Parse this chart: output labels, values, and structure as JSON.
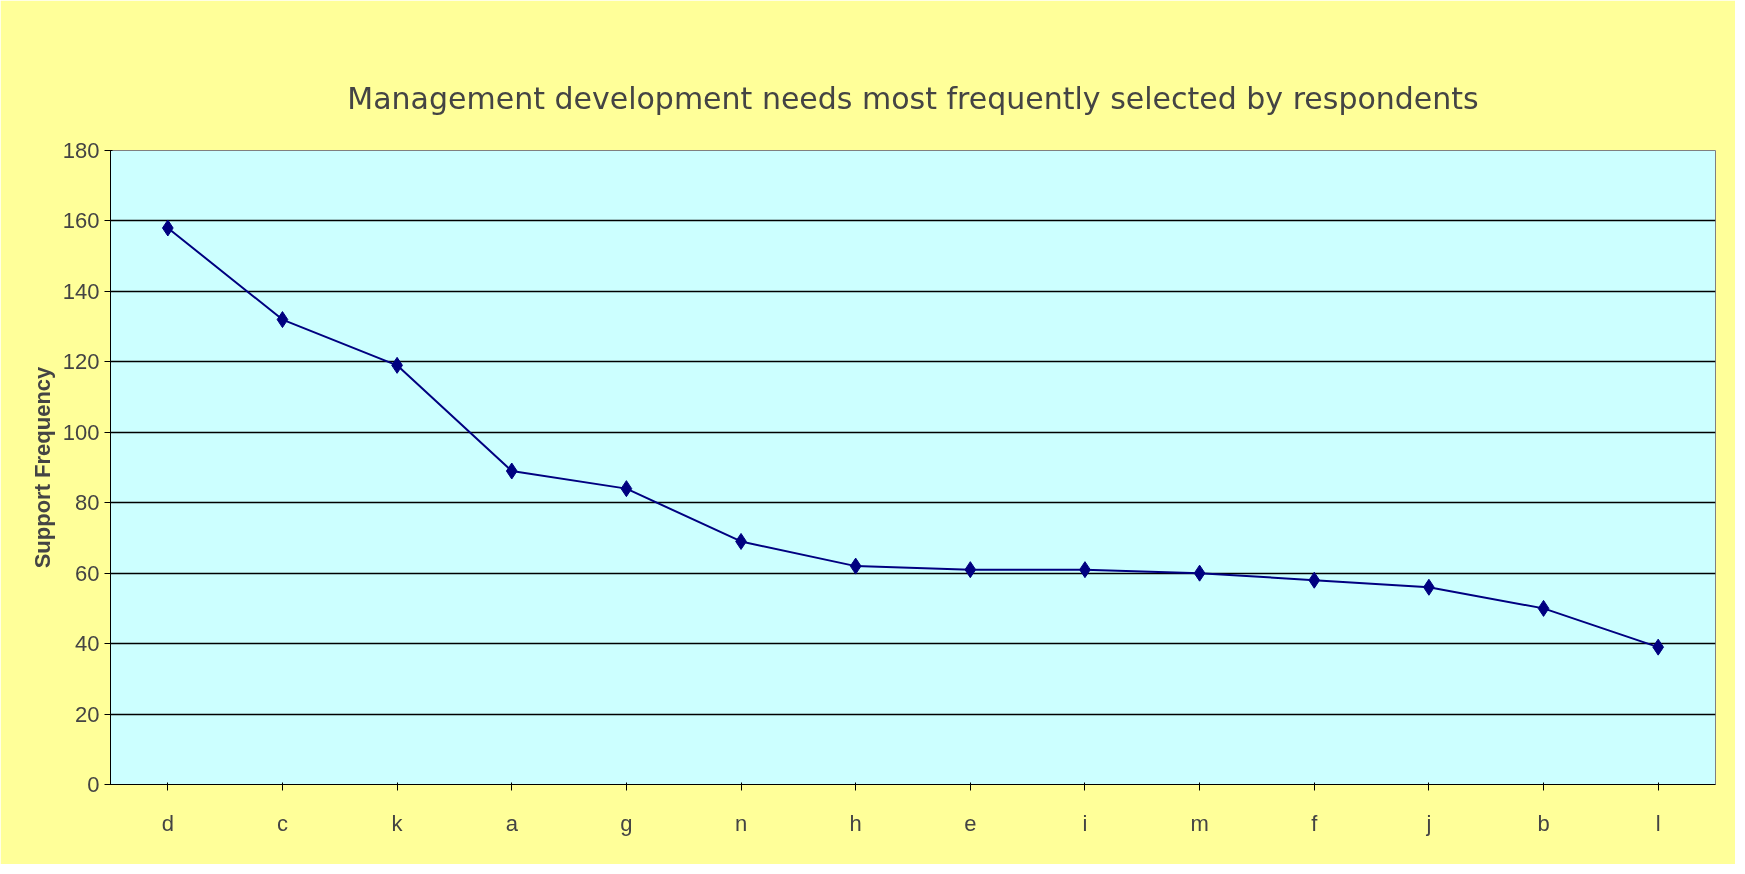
{
  "chart_data": {
    "type": "line",
    "title": "Management development needs most frequently selected by respondents",
    "ylabel": "Support Frequency",
    "categories": [
      "d",
      "c",
      "k",
      "a",
      "g",
      "n",
      "h",
      "e",
      "i",
      "m",
      "f",
      "j",
      "b",
      "l"
    ],
    "series": [
      {
        "color": "#000080",
        "values": [
          158,
          132,
          119,
          89,
          84,
          69,
          62,
          61,
          61,
          60,
          58,
          56,
          50,
          39
        ]
      }
    ],
    "ylim": [
      0,
      180
    ],
    "yticks": [
      0,
      20,
      40,
      60,
      80,
      100,
      120,
      140,
      160,
      180
    ],
    "grid": "y",
    "marker": "diamond",
    "line_style": "solid"
  }
}
